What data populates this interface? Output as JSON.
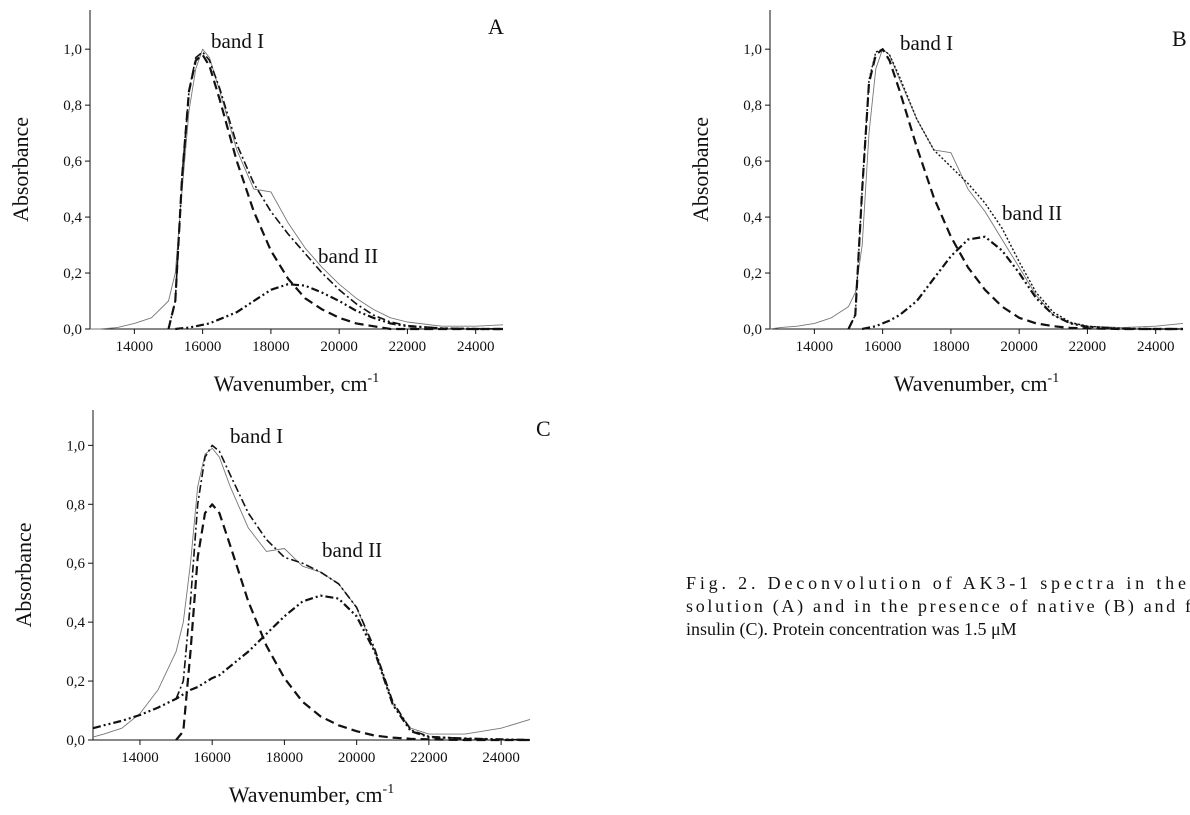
{
  "chart_data": [
    {
      "type": "line",
      "panel_label": "A",
      "ylabel": "Absorbance",
      "xlabel": "Wavenumber, cm",
      "xlabel_superscript": "-1",
      "annotations": [
        "band I",
        "band II"
      ],
      "xlim": [
        12700,
        24800
      ],
      "ylim": [
        0,
        1.14
      ],
      "xticks": [
        14000,
        16000,
        18000,
        20000,
        22000,
        24000
      ],
      "yticks": [
        {
          "value": 0,
          "label": "0,0"
        },
        {
          "value": 0.2,
          "label": "0,2"
        },
        {
          "value": 0.4,
          "label": "0,4"
        },
        {
          "value": 0.6,
          "label": "0,6"
        },
        {
          "value": 0.8,
          "label": "0,8"
        },
        {
          "value": 1.0,
          "label": "1,0"
        }
      ],
      "x": [
        12700,
        13000,
        13500,
        14000,
        14500,
        15000,
        15200,
        15400,
        15600,
        15800,
        16000,
        16200,
        16500,
        17000,
        17500,
        18000,
        18500,
        19000,
        19500,
        20000,
        20500,
        21000,
        21500,
        22000,
        23000,
        24000,
        24800
      ],
      "series": [
        {
          "color": "#777777",
          "style": "solid",
          "values": [
            0,
            0,
            0.005,
            0.02,
            0.04,
            0.1,
            0.2,
            0.5,
            0.78,
            0.93,
            1.0,
            0.97,
            0.85,
            0.64,
            0.5,
            0.49,
            0.38,
            0.29,
            0.22,
            0.16,
            0.11,
            0.07,
            0.04,
            0.025,
            0.01,
            0.01,
            0.015
          ]
        },
        {
          "color": "#111111",
          "style": "dash",
          "values": [
            null,
            null,
            null,
            null,
            null,
            0,
            0.1,
            0.55,
            0.85,
            0.96,
            0.98,
            0.94,
            0.82,
            0.6,
            0.42,
            0.28,
            0.18,
            0.11,
            0.07,
            0.04,
            0.02,
            0.01,
            0,
            0,
            0,
            0,
            0
          ]
        },
        {
          "color": "#111111",
          "style": "dashdotdot",
          "values": [
            null,
            null,
            null,
            null,
            null,
            null,
            0,
            0.003,
            0.005,
            0.01,
            0.015,
            0.02,
            0.035,
            0.06,
            0.1,
            0.14,
            0.16,
            0.155,
            0.13,
            0.1,
            0.065,
            0.04,
            0.02,
            0.01,
            0.002,
            0,
            0
          ]
        },
        {
          "color": "#111111",
          "style": "dashdot",
          "values": [
            null,
            null,
            null,
            null,
            null,
            0,
            0.1,
            0.55,
            0.85,
            0.97,
            0.99,
            0.96,
            0.86,
            0.66,
            0.52,
            0.42,
            0.34,
            0.27,
            0.2,
            0.14,
            0.09,
            0.05,
            0.025,
            0.012,
            0.003,
            0.001,
            0
          ]
        }
      ]
    },
    {
      "type": "line",
      "panel_label": "B",
      "ylabel": "Absorbance",
      "xlabel": "Wavenumber, cm",
      "xlabel_superscript": "-1",
      "annotations": [
        "band I",
        "band II"
      ],
      "xlim": [
        12700,
        24800
      ],
      "ylim": [
        0,
        1.14
      ],
      "xticks": [
        14000,
        16000,
        18000,
        20000,
        22000,
        24000
      ],
      "yticks": [
        {
          "value": 0,
          "label": "0,0"
        },
        {
          "value": 0.2,
          "label": "0,2"
        },
        {
          "value": 0.4,
          "label": "0,4"
        },
        {
          "value": 0.6,
          "label": "0,6"
        },
        {
          "value": 0.8,
          "label": "0,8"
        },
        {
          "value": 1.0,
          "label": "1,0"
        }
      ],
      "x": [
        12700,
        13000,
        13500,
        14000,
        14500,
        15000,
        15200,
        15400,
        15600,
        15800,
        16000,
        16200,
        16500,
        17000,
        17500,
        18000,
        18500,
        19000,
        19500,
        20000,
        20500,
        21000,
        21500,
        22000,
        23000,
        24000,
        24800
      ],
      "series": [
        {
          "color": "#777777",
          "style": "solid",
          "values": [
            0,
            0.005,
            0.01,
            0.02,
            0.04,
            0.08,
            0.13,
            0.3,
            0.7,
            0.93,
            1.0,
            0.98,
            0.89,
            0.75,
            0.64,
            0.63,
            0.5,
            0.42,
            0.32,
            0.22,
            0.12,
            0.05,
            0.02,
            0.01,
            0.005,
            0.01,
            0.02
          ]
        },
        {
          "color": "#111111",
          "style": "dash",
          "values": [
            null,
            null,
            null,
            null,
            null,
            0,
            0.05,
            0.5,
            0.88,
            0.98,
            1.0,
            0.96,
            0.85,
            0.65,
            0.47,
            0.33,
            0.22,
            0.14,
            0.08,
            0.04,
            0.02,
            0.01,
            0.004,
            0.002,
            0,
            0,
            0
          ]
        },
        {
          "color": "#111111",
          "style": "dashdotdot",
          "values": [
            null,
            null,
            null,
            null,
            null,
            null,
            null,
            0,
            0.005,
            0.01,
            0.02,
            0.03,
            0.05,
            0.1,
            0.18,
            0.26,
            0.32,
            0.33,
            0.28,
            0.2,
            0.11,
            0.05,
            0.02,
            0.008,
            0.001,
            0,
            0
          ]
        },
        {
          "color": "#111111",
          "style": "dot",
          "values": [
            null,
            null,
            null,
            null,
            null,
            0,
            0.05,
            0.5,
            0.89,
            0.99,
            1.0,
            0.98,
            0.9,
            0.75,
            0.64,
            0.58,
            0.52,
            0.45,
            0.36,
            0.24,
            0.13,
            0.06,
            0.024,
            0.01,
            0.001,
            0,
            0
          ]
        }
      ]
    },
    {
      "type": "line",
      "panel_label": "C",
      "ylabel": "Absorbance",
      "xlabel": "Wavenumber, cm",
      "xlabel_superscript": "-1",
      "annotations": [
        "band I",
        "band II"
      ],
      "xlim": [
        12700,
        24800
      ],
      "ylim": [
        0,
        1.12
      ],
      "xticks": [
        14000,
        16000,
        18000,
        20000,
        22000,
        24000
      ],
      "yticks": [
        {
          "value": 0,
          "label": "0,0"
        },
        {
          "value": 0.2,
          "label": "0,2"
        },
        {
          "value": 0.4,
          "label": "0,4"
        },
        {
          "value": 0.6,
          "label": "0,6"
        },
        {
          "value": 0.8,
          "label": "0,8"
        },
        {
          "value": 1.0,
          "label": "1,0"
        }
      ],
      "x": [
        12700,
        13000,
        13500,
        14000,
        14500,
        15000,
        15200,
        15400,
        15600,
        15800,
        16000,
        16200,
        16500,
        17000,
        17500,
        18000,
        18500,
        19000,
        19500,
        20000,
        20500,
        21000,
        21500,
        22000,
        23000,
        24000,
        24800
      ],
      "series": [
        {
          "color": "#777777",
          "style": "solid",
          "values": [
            0.01,
            0.02,
            0.04,
            0.09,
            0.17,
            0.3,
            0.4,
            0.6,
            0.86,
            0.97,
            0.99,
            0.96,
            0.86,
            0.72,
            0.64,
            0.65,
            0.59,
            0.57,
            0.53,
            0.45,
            0.3,
            0.12,
            0.04,
            0.02,
            0.02,
            0.04,
            0.07
          ]
        },
        {
          "color": "#111111",
          "style": "dash",
          "values": [
            null,
            null,
            null,
            null,
            null,
            0,
            0.03,
            0.3,
            0.62,
            0.77,
            0.8,
            0.77,
            0.66,
            0.47,
            0.32,
            0.21,
            0.13,
            0.08,
            0.05,
            0.03,
            0.015,
            0.008,
            0.004,
            0.002,
            0,
            0,
            0
          ]
        },
        {
          "color": "#111111",
          "style": "dashdotdot",
          "values": [
            0.04,
            0.05,
            0.065,
            0.085,
            0.11,
            0.14,
            0.155,
            0.17,
            0.18,
            0.195,
            0.21,
            0.22,
            0.25,
            0.3,
            0.36,
            0.42,
            0.47,
            0.49,
            0.48,
            0.42,
            0.3,
            0.12,
            0.03,
            0.01,
            0.005,
            0.002,
            0
          ]
        },
        {
          "color": "#111111",
          "style": "dashdot",
          "values": [
            null,
            null,
            null,
            null,
            null,
            0.14,
            0.2,
            0.47,
            0.8,
            0.96,
            1.0,
            0.98,
            0.9,
            0.77,
            0.68,
            0.62,
            0.6,
            0.57,
            0.53,
            0.45,
            0.31,
            0.13,
            0.034,
            0.012,
            0.005,
            0.002,
            0
          ]
        }
      ]
    }
  ],
  "caption": [
    "Fig. 2. Deconvolution of AK3-1 spectra in the",
    "solution (A) and in the presence of native (B) and f",
    "insulin (C). Protein concentration was 1.5 μM"
  ]
}
